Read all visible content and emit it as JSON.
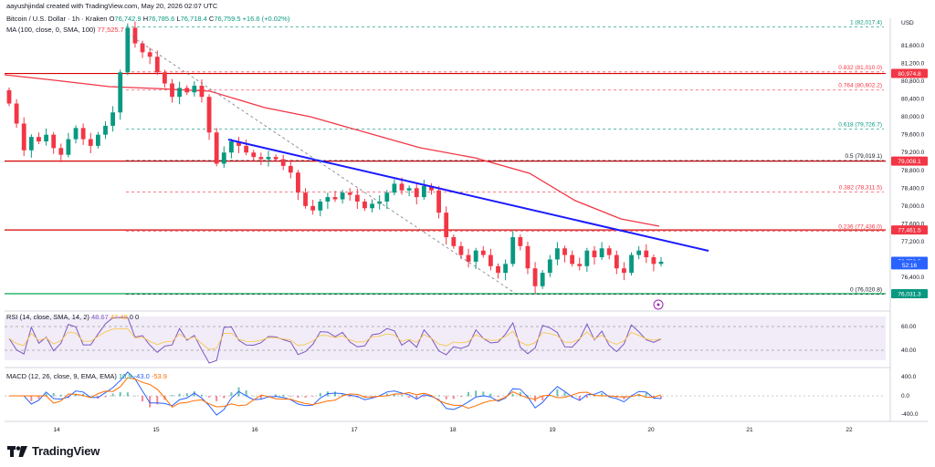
{
  "watermark": {
    "author_line": "aayushjindal created with TradingView.com, May 20, 2026 02:07 UTC"
  },
  "header": {
    "symbol": "Bitcoin / U.S. Dollar · 1h · Kraken",
    "open_label": "O",
    "open": "76,742.9",
    "high_label": "H",
    "high": "76,785.6",
    "low_label": "L",
    "low": "76,718.4",
    "close_label": "C",
    "close": "76,759.5",
    "change": "+16.6 (+0.02%)",
    "ma_line": "MA (100, close, 0, SMA, 100)",
    "ma_value": "77,525.7",
    "rsi_line": "RSI (14, close, SMA, 14, 2)",
    "rsi_values": [
      "48.67",
      "47.48",
      "0",
      "0"
    ],
    "macd_line": "MACD (12, 26, close, 9, EMA, EMA)",
    "macd_values": [
      "10.9",
      "-43.0",
      "-53.9"
    ]
  },
  "price_axis": {
    "currency": "USD",
    "ticks": [
      "81,600.0",
      "81,200.0",
      "80,800.0",
      "80,400.0",
      "80,000.0",
      "79,600.0",
      "79,200.0",
      "78,800.0",
      "78,400.0",
      "78,000.0",
      "77,600.0",
      "77,200.0",
      "76,800.0",
      "76,400.0"
    ],
    "rsi_ticks": [
      "60.00",
      "40.00"
    ],
    "macd_ticks": [
      "400.0",
      "0.0",
      "-400.0"
    ]
  },
  "time_axis": {
    "ticks": [
      "14",
      "15",
      "16",
      "17",
      "18",
      "19",
      "20",
      "21",
      "22"
    ]
  },
  "fib_levels": [
    {
      "label": "1 (82,017.4)",
      "price": 82017.4,
      "color": "#089981"
    },
    {
      "label": "0.832 (81,010.0)",
      "price": 81010.0,
      "color": "#f23645"
    },
    {
      "label": "0.764 (80,602.2)",
      "price": 80602.2,
      "color": "#f23645"
    },
    {
      "label": "0.618 (79,726.7)",
      "price": 79726.7,
      "color": "#089981"
    },
    {
      "label": "0.5 (79,019.1)",
      "price": 79019.1,
      "color": "#131722"
    },
    {
      "label": "0.382 (78,311.5)",
      "price": 78311.5,
      "color": "#f23645"
    },
    {
      "label": "0.236 (77,436.0)",
      "price": 77436.0,
      "color": "#f23645"
    },
    {
      "label": "0 (76,020.8)",
      "price": 76020.8,
      "color": "#131722"
    }
  ],
  "price_tags": [
    {
      "text": "80,974.8",
      "price": 80974.8,
      "color": "#f23645"
    },
    {
      "text": "79,008.1",
      "price": 79008.1,
      "color": "#f23645"
    },
    {
      "text": "77,461.5",
      "price": 77461.5,
      "color": "#f23645"
    },
    {
      "text": "76,759.5",
      "price": 76759.5,
      "color": "#2962ff"
    },
    {
      "text": "52:16",
      "price": 76680,
      "color": "#2962ff"
    },
    {
      "text": "76,031.3",
      "price": 76031.3,
      "color": "#089981"
    }
  ],
  "horizontal_lines": [
    {
      "name": "resistance-81k",
      "price": 80974.8,
      "color": "#d50000"
    },
    {
      "name": "resistance-79k",
      "price": 79008.1,
      "color": "#d50000"
    },
    {
      "name": "resistance-77-4k",
      "price": 77461.5,
      "color": "#d50000"
    },
    {
      "name": "support-76k",
      "price": 76031.3,
      "color": "#00a651"
    }
  ],
  "colors": {
    "up": "#089981",
    "down": "#f23645",
    "trendline": "#1a1aff",
    "ma": "#f23645",
    "rsi": "#7e57c2",
    "macd": "#2962ff",
    "signal": "#ff6d00"
  },
  "brand": {
    "name": "TradingView"
  },
  "chart_data": {
    "type": "candlestick",
    "symbol": "BTC/USD",
    "interval": "1h",
    "price_range": [
      76200,
      82100
    ],
    "candles_approx_close": [
      80300,
      79850,
      79250,
      79550,
      79450,
      79600,
      79300,
      79150,
      79500,
      79750,
      79500,
      79350,
      79600,
      79800,
      80100,
      81000,
      82000,
      81650,
      81450,
      81350,
      81000,
      80750,
      80450,
      80650,
      80550,
      80700,
      80450,
      79650,
      78950,
      79200,
      79450,
      79350,
      79200,
      79100,
      79050,
      79100,
      79050,
      78900,
      78750,
      78300,
      78000,
      77900,
      78100,
      78200,
      78150,
      78300,
      78250,
      78100,
      77950,
      78050,
      78100,
      78300,
      78500,
      78350,
      78400,
      78200,
      78450,
      78350,
      77850,
      77300,
      77100,
      76900,
      76750,
      77000,
      76900,
      76650,
      76500,
      76700,
      77300,
      77100,
      76600,
      76200,
      76500,
      76800,
      77050,
      76900,
      76700,
      76650,
      77000,
      76850,
      77050,
      76900,
      76600,
      76500,
      76900,
      77000,
      76850,
      76700,
      76750
    ],
    "trendlines": [
      {
        "name": "descending resistance",
        "color": "blue"
      },
      {
        "name": "descending dashed",
        "color": "gray"
      }
    ],
    "indicators": [
      "MA 100",
      "RSI 14",
      "MACD 12 26 9"
    ]
  }
}
